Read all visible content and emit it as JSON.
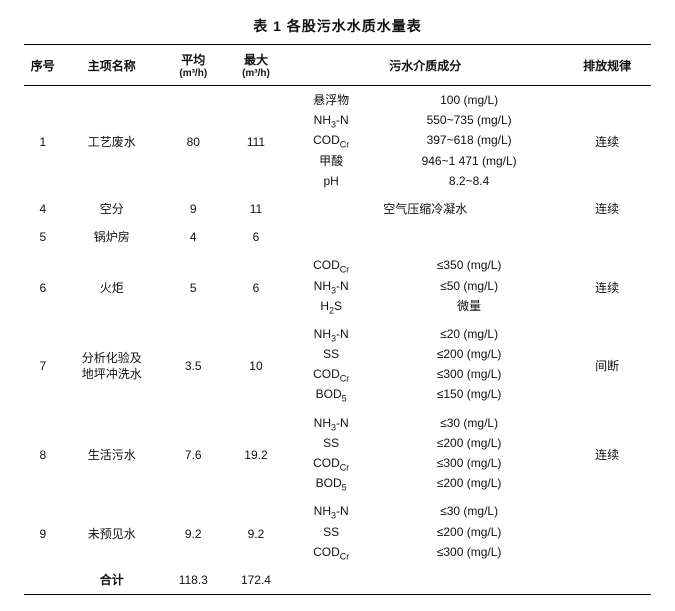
{
  "title": "表 1  各股污水水质水量表",
  "headers": {
    "seq": "序号",
    "name": "主项名称",
    "avg_label": "平均",
    "avg_unit": "(m³/h)",
    "max_label": "最大",
    "max_unit": "(m³/h)",
    "components": "污水介质成分",
    "rule": "排放规律"
  },
  "rows": [
    {
      "seq": "1",
      "name": "工艺废水",
      "avg": "80",
      "max": "111",
      "comp_names": [
        "悬浮物",
        "NH₃-N",
        "COD꜀ᵣ",
        "甲酸",
        "pH"
      ],
      "comp_vals": [
        "100 (mg/L)",
        "550~735 (mg/L)",
        "397~618 (mg/L)",
        "946~1 471 (mg/L)",
        "8.2~8.4"
      ],
      "rule": "连续"
    },
    {
      "seq": "4",
      "name": "空分",
      "avg": "9",
      "max": "11",
      "comp_merged": "空气压缩冷凝水",
      "rule": "连续"
    },
    {
      "seq": "5",
      "name": "锅炉房",
      "avg": "4",
      "max": "6",
      "comp_names": [],
      "comp_vals": [],
      "rule": ""
    },
    {
      "seq": "6",
      "name": "火炬",
      "avg": "5",
      "max": "6",
      "comp_names": [
        "COD꜀ᵣ",
        "NH₃-N",
        "H₂S"
      ],
      "comp_vals": [
        "≤350 (mg/L)",
        "≤50 (mg/L)",
        "微量"
      ],
      "rule": "连续"
    },
    {
      "seq": "7",
      "name_lines": [
        "分析化验及",
        "地坪冲洗水"
      ],
      "avg": "3.5",
      "max": "10",
      "comp_names": [
        "NH₃-N",
        "SS",
        "COD꜀ᵣ",
        "BOD₅"
      ],
      "comp_vals": [
        "≤20 (mg/L)",
        "≤200 (mg/L)",
        "≤300 (mg/L)",
        "≤150 (mg/L)"
      ],
      "rule": "间断"
    },
    {
      "seq": "8",
      "name": "生活污水",
      "avg": "7.6",
      "max": "19.2",
      "comp_names": [
        "NH₃-N",
        "SS",
        "COD꜀ᵣ",
        "BOD₅"
      ],
      "comp_vals": [
        "≤30 (mg/L)",
        "≤200 (mg/L)",
        "≤300 (mg/L)",
        "≤200 (mg/L)"
      ],
      "rule": "连续"
    },
    {
      "seq": "9",
      "name": "未预见水",
      "avg": "9.2",
      "max": "9.2",
      "comp_names": [
        "NH₃-N",
        "SS",
        "COD꜀ᵣ"
      ],
      "comp_vals": [
        "≤30 (mg/L)",
        "≤200 (mg/L)",
        "≤300 (mg/L)"
      ],
      "rule": ""
    }
  ],
  "total": {
    "label": "合计",
    "avg": "118.3",
    "max": "172.4"
  }
}
